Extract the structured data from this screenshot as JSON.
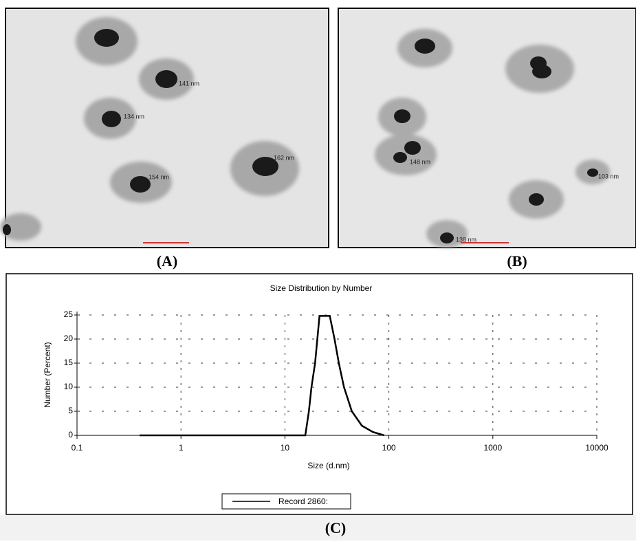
{
  "panels": [
    {
      "label": "(A)",
      "annotations": [
        "141 nm",
        "134 nm",
        "154 nm",
        "162 nm"
      ]
    },
    {
      "label": "(B)",
      "annotations": [
        "148 nm",
        "103 nm",
        "138 nm"
      ]
    }
  ],
  "chart_label": "(C)",
  "chart_data": {
    "type": "line",
    "title": "Size Distribution by Number",
    "xlabel": "Size (d.nm)",
    "ylabel": "Number (Percent)",
    "x": [
      0.4,
      1,
      5,
      15,
      15.7,
      17,
      18,
      19.5,
      20.5,
      21.5,
      27,
      30,
      33,
      37,
      44,
      55,
      70,
      90
    ],
    "series": [
      {
        "name": "Record 2860:",
        "color": "#000000",
        "values": [
          0,
          0,
          0,
          0,
          0,
          5,
          10,
          15,
          20,
          24.8,
          24.8,
          20,
          15,
          10,
          5,
          2,
          0.7,
          0
        ]
      }
    ],
    "xlim": [
      0.1,
      10000
    ],
    "xticks": [
      0.1,
      1,
      10,
      100,
      1000,
      10000
    ],
    "log_x": true,
    "ylim": [
      0,
      25
    ],
    "yticks": [
      0,
      5,
      10,
      15,
      20,
      25
    ],
    "grid": true
  }
}
